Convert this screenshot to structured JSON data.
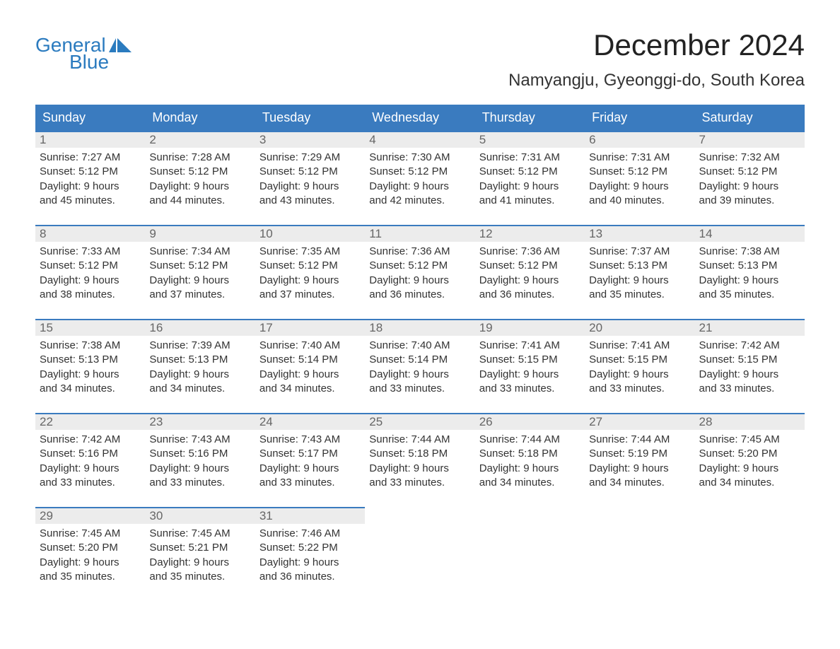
{
  "logo": {
    "top": "General",
    "bottom": "Blue"
  },
  "title": "December 2024",
  "location": "Namyangju, Gyeonggi-do, South Korea",
  "colors": {
    "header_bg": "#3a7bbf",
    "header_text": "#ffffff",
    "daynum_bg": "#ececec",
    "daynum_text": "#666666",
    "body_text": "#333333",
    "logo_color": "#2b7bbf",
    "page_bg": "#ffffff",
    "week_border": "#3a7bbf"
  },
  "typography": {
    "title_fontsize": 42,
    "location_fontsize": 24,
    "header_fontsize": 18,
    "daynum_fontsize": 17,
    "content_fontsize": 15,
    "logo_fontsize": 28
  },
  "weekdays": [
    "Sunday",
    "Monday",
    "Tuesday",
    "Wednesday",
    "Thursday",
    "Friday",
    "Saturday"
  ],
  "days": [
    {
      "n": "1",
      "sunrise": "Sunrise: 7:27 AM",
      "sunset": "Sunset: 5:12 PM",
      "dl1": "Daylight: 9 hours",
      "dl2": "and 45 minutes."
    },
    {
      "n": "2",
      "sunrise": "Sunrise: 7:28 AM",
      "sunset": "Sunset: 5:12 PM",
      "dl1": "Daylight: 9 hours",
      "dl2": "and 44 minutes."
    },
    {
      "n": "3",
      "sunrise": "Sunrise: 7:29 AM",
      "sunset": "Sunset: 5:12 PM",
      "dl1": "Daylight: 9 hours",
      "dl2": "and 43 minutes."
    },
    {
      "n": "4",
      "sunrise": "Sunrise: 7:30 AM",
      "sunset": "Sunset: 5:12 PM",
      "dl1": "Daylight: 9 hours",
      "dl2": "and 42 minutes."
    },
    {
      "n": "5",
      "sunrise": "Sunrise: 7:31 AM",
      "sunset": "Sunset: 5:12 PM",
      "dl1": "Daylight: 9 hours",
      "dl2": "and 41 minutes."
    },
    {
      "n": "6",
      "sunrise": "Sunrise: 7:31 AM",
      "sunset": "Sunset: 5:12 PM",
      "dl1": "Daylight: 9 hours",
      "dl2": "and 40 minutes."
    },
    {
      "n": "7",
      "sunrise": "Sunrise: 7:32 AM",
      "sunset": "Sunset: 5:12 PM",
      "dl1": "Daylight: 9 hours",
      "dl2": "and 39 minutes."
    },
    {
      "n": "8",
      "sunrise": "Sunrise: 7:33 AM",
      "sunset": "Sunset: 5:12 PM",
      "dl1": "Daylight: 9 hours",
      "dl2": "and 38 minutes."
    },
    {
      "n": "9",
      "sunrise": "Sunrise: 7:34 AM",
      "sunset": "Sunset: 5:12 PM",
      "dl1": "Daylight: 9 hours",
      "dl2": "and 37 minutes."
    },
    {
      "n": "10",
      "sunrise": "Sunrise: 7:35 AM",
      "sunset": "Sunset: 5:12 PM",
      "dl1": "Daylight: 9 hours",
      "dl2": "and 37 minutes."
    },
    {
      "n": "11",
      "sunrise": "Sunrise: 7:36 AM",
      "sunset": "Sunset: 5:12 PM",
      "dl1": "Daylight: 9 hours",
      "dl2": "and 36 minutes."
    },
    {
      "n": "12",
      "sunrise": "Sunrise: 7:36 AM",
      "sunset": "Sunset: 5:12 PM",
      "dl1": "Daylight: 9 hours",
      "dl2": "and 36 minutes."
    },
    {
      "n": "13",
      "sunrise": "Sunrise: 7:37 AM",
      "sunset": "Sunset: 5:13 PM",
      "dl1": "Daylight: 9 hours",
      "dl2": "and 35 minutes."
    },
    {
      "n": "14",
      "sunrise": "Sunrise: 7:38 AM",
      "sunset": "Sunset: 5:13 PM",
      "dl1": "Daylight: 9 hours",
      "dl2": "and 35 minutes."
    },
    {
      "n": "15",
      "sunrise": "Sunrise: 7:38 AM",
      "sunset": "Sunset: 5:13 PM",
      "dl1": "Daylight: 9 hours",
      "dl2": "and 34 minutes."
    },
    {
      "n": "16",
      "sunrise": "Sunrise: 7:39 AM",
      "sunset": "Sunset: 5:13 PM",
      "dl1": "Daylight: 9 hours",
      "dl2": "and 34 minutes."
    },
    {
      "n": "17",
      "sunrise": "Sunrise: 7:40 AM",
      "sunset": "Sunset: 5:14 PM",
      "dl1": "Daylight: 9 hours",
      "dl2": "and 34 minutes."
    },
    {
      "n": "18",
      "sunrise": "Sunrise: 7:40 AM",
      "sunset": "Sunset: 5:14 PM",
      "dl1": "Daylight: 9 hours",
      "dl2": "and 33 minutes."
    },
    {
      "n": "19",
      "sunrise": "Sunrise: 7:41 AM",
      "sunset": "Sunset: 5:15 PM",
      "dl1": "Daylight: 9 hours",
      "dl2": "and 33 minutes."
    },
    {
      "n": "20",
      "sunrise": "Sunrise: 7:41 AM",
      "sunset": "Sunset: 5:15 PM",
      "dl1": "Daylight: 9 hours",
      "dl2": "and 33 minutes."
    },
    {
      "n": "21",
      "sunrise": "Sunrise: 7:42 AM",
      "sunset": "Sunset: 5:15 PM",
      "dl1": "Daylight: 9 hours",
      "dl2": "and 33 minutes."
    },
    {
      "n": "22",
      "sunrise": "Sunrise: 7:42 AM",
      "sunset": "Sunset: 5:16 PM",
      "dl1": "Daylight: 9 hours",
      "dl2": "and 33 minutes."
    },
    {
      "n": "23",
      "sunrise": "Sunrise: 7:43 AM",
      "sunset": "Sunset: 5:16 PM",
      "dl1": "Daylight: 9 hours",
      "dl2": "and 33 minutes."
    },
    {
      "n": "24",
      "sunrise": "Sunrise: 7:43 AM",
      "sunset": "Sunset: 5:17 PM",
      "dl1": "Daylight: 9 hours",
      "dl2": "and 33 minutes."
    },
    {
      "n": "25",
      "sunrise": "Sunrise: 7:44 AM",
      "sunset": "Sunset: 5:18 PM",
      "dl1": "Daylight: 9 hours",
      "dl2": "and 33 minutes."
    },
    {
      "n": "26",
      "sunrise": "Sunrise: 7:44 AM",
      "sunset": "Sunset: 5:18 PM",
      "dl1": "Daylight: 9 hours",
      "dl2": "and 34 minutes."
    },
    {
      "n": "27",
      "sunrise": "Sunrise: 7:44 AM",
      "sunset": "Sunset: 5:19 PM",
      "dl1": "Daylight: 9 hours",
      "dl2": "and 34 minutes."
    },
    {
      "n": "28",
      "sunrise": "Sunrise: 7:45 AM",
      "sunset": "Sunset: 5:20 PM",
      "dl1": "Daylight: 9 hours",
      "dl2": "and 34 minutes."
    },
    {
      "n": "29",
      "sunrise": "Sunrise: 7:45 AM",
      "sunset": "Sunset: 5:20 PM",
      "dl1": "Daylight: 9 hours",
      "dl2": "and 35 minutes."
    },
    {
      "n": "30",
      "sunrise": "Sunrise: 7:45 AM",
      "sunset": "Sunset: 5:21 PM",
      "dl1": "Daylight: 9 hours",
      "dl2": "and 35 minutes."
    },
    {
      "n": "31",
      "sunrise": "Sunrise: 7:46 AM",
      "sunset": "Sunset: 5:22 PM",
      "dl1": "Daylight: 9 hours",
      "dl2": "and 36 minutes."
    }
  ]
}
